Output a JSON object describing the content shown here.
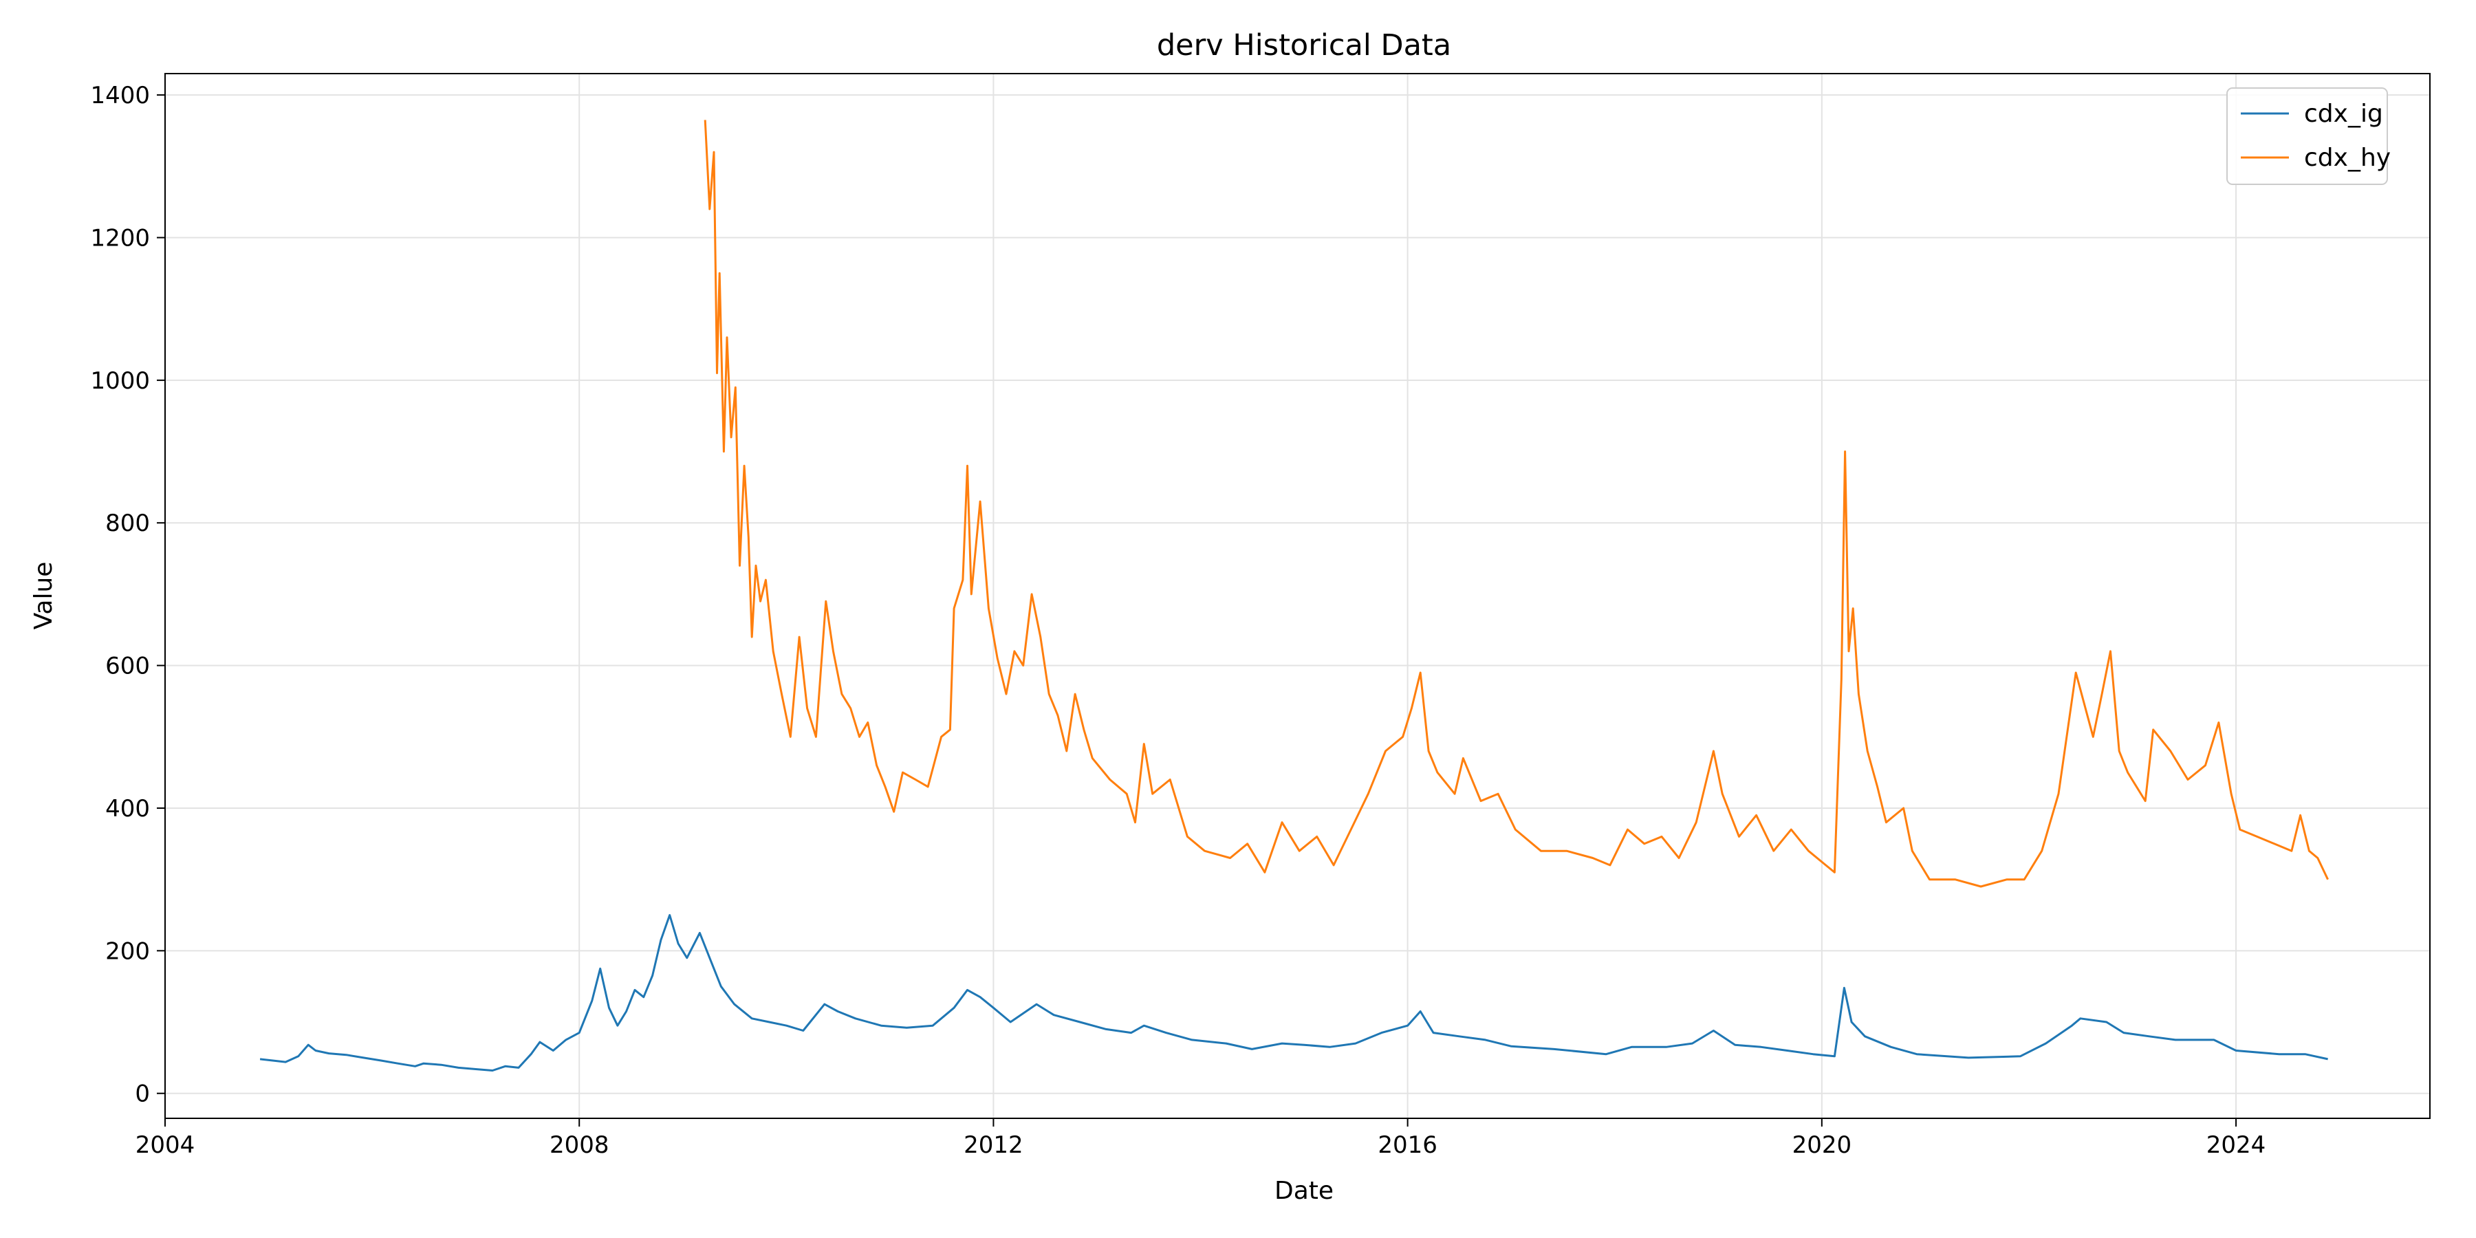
{
  "chart_data": {
    "type": "line",
    "title": "derv Historical Data",
    "xlabel": "Date",
    "ylabel": "Value",
    "xlim": [
      "2004-01-01",
      "2025-11-15"
    ],
    "ylim": [
      -35,
      1430
    ],
    "x_ticks": [
      "2004",
      "2008",
      "2012",
      "2016",
      "2020",
      "2024"
    ],
    "y_ticks": [
      0,
      200,
      400,
      600,
      800,
      1000,
      1200,
      1400
    ],
    "grid": true,
    "legend_position": "upper right",
    "series": [
      {
        "name": "cdx_ig",
        "color": "#1f77b4",
        "points": [
          [
            "2004-12-01",
            48
          ],
          [
            "2005-01-15",
            46
          ],
          [
            "2005-03-01",
            44
          ],
          [
            "2005-04-15",
            52
          ],
          [
            "2005-05-20",
            68
          ],
          [
            "2005-06-15",
            60
          ],
          [
            "2005-08-01",
            56
          ],
          [
            "2005-10-01",
            54
          ],
          [
            "2005-12-01",
            50
          ],
          [
            "2006-02-01",
            46
          ],
          [
            "2006-04-01",
            42
          ],
          [
            "2006-06-01",
            38
          ],
          [
            "2006-07-01",
            42
          ],
          [
            "2006-09-01",
            40
          ],
          [
            "2006-11-01",
            36
          ],
          [
            "2007-01-01",
            34
          ],
          [
            "2007-03-01",
            32
          ],
          [
            "2007-04-15",
            38
          ],
          [
            "2007-06-01",
            36
          ],
          [
            "2007-07-15",
            55
          ],
          [
            "2007-08-15",
            72
          ],
          [
            "2007-10-01",
            60
          ],
          [
            "2007-11-15",
            75
          ],
          [
            "2008-01-01",
            85
          ],
          [
            "2008-02-15",
            130
          ],
          [
            "2008-03-15",
            175
          ],
          [
            "2008-04-15",
            120
          ],
          [
            "2008-05-15",
            95
          ],
          [
            "2008-06-15",
            115
          ],
          [
            "2008-07-15",
            145
          ],
          [
            "2008-08-15",
            135
          ],
          [
            "2008-09-15",
            165
          ],
          [
            "2008-10-15",
            215
          ],
          [
            "2008-11-15",
            250
          ],
          [
            "2008-12-15",
            210
          ],
          [
            "2009-01-15",
            190
          ],
          [
            "2009-03-01",
            225
          ],
          [
            "2009-04-15",
            180
          ],
          [
            "2009-05-15",
            150
          ],
          [
            "2009-07-01",
            125
          ],
          [
            "2009-09-01",
            105
          ],
          [
            "2009-11-01",
            100
          ],
          [
            "2010-01-01",
            95
          ],
          [
            "2010-03-01",
            88
          ],
          [
            "2010-05-15",
            125
          ],
          [
            "2010-07-01",
            115
          ],
          [
            "2010-09-01",
            105
          ],
          [
            "2010-12-01",
            95
          ],
          [
            "2011-03-01",
            92
          ],
          [
            "2011-06-01",
            95
          ],
          [
            "2011-08-15",
            120
          ],
          [
            "2011-10-01",
            145
          ],
          [
            "2011-11-15",
            135
          ],
          [
            "2012-01-01",
            120
          ],
          [
            "2012-03-01",
            100
          ],
          [
            "2012-06-01",
            125
          ],
          [
            "2012-08-01",
            110
          ],
          [
            "2012-11-01",
            100
          ],
          [
            "2013-02-01",
            90
          ],
          [
            "2013-05-01",
            85
          ],
          [
            "2013-06-15",
            95
          ],
          [
            "2013-09-01",
            85
          ],
          [
            "2013-12-01",
            75
          ],
          [
            "2014-04-01",
            70
          ],
          [
            "2014-07-01",
            62
          ],
          [
            "2014-10-15",
            70
          ],
          [
            "2015-01-01",
            68
          ],
          [
            "2015-04-01",
            65
          ],
          [
            "2015-07-01",
            70
          ],
          [
            "2015-10-01",
            85
          ],
          [
            "2016-01-01",
            95
          ],
          [
            "2016-02-15",
            115
          ],
          [
            "2016-04-01",
            85
          ],
          [
            "2016-07-01",
            80
          ],
          [
            "2016-10-01",
            75
          ],
          [
            "2017-01-01",
            66
          ],
          [
            "2017-06-01",
            62
          ],
          [
            "2017-12-01",
            55
          ],
          [
            "2018-03-01",
            65
          ],
          [
            "2018-07-01",
            65
          ],
          [
            "2018-10-01",
            70
          ],
          [
            "2018-12-15",
            88
          ],
          [
            "2019-03-01",
            68
          ],
          [
            "2019-06-01",
            65
          ],
          [
            "2019-09-01",
            60
          ],
          [
            "2019-12-01",
            55
          ],
          [
            "2020-02-15",
            52
          ],
          [
            "2020-03-20",
            148
          ],
          [
            "2020-04-15",
            100
          ],
          [
            "2020-06-01",
            80
          ],
          [
            "2020-09-01",
            65
          ],
          [
            "2020-12-01",
            55
          ],
          [
            "2021-06-01",
            50
          ],
          [
            "2021-12-01",
            52
          ],
          [
            "2022-03-01",
            70
          ],
          [
            "2022-06-01",
            95
          ],
          [
            "2022-07-01",
            105
          ],
          [
            "2022-10-01",
            100
          ],
          [
            "2022-12-01",
            85
          ],
          [
            "2023-03-01",
            80
          ],
          [
            "2023-06-01",
            75
          ],
          [
            "2023-10-15",
            75
          ],
          [
            "2024-01-01",
            60
          ],
          [
            "2024-06-01",
            55
          ],
          [
            "2024-09-01",
            55
          ],
          [
            "2024-11-20",
            48
          ]
        ]
      },
      {
        "name": "cdx_hy",
        "color": "#ff7f0e",
        "points": [
          [
            "2009-03-20",
            1365
          ],
          [
            "2009-04-05",
            1240
          ],
          [
            "2009-04-20",
            1320
          ],
          [
            "2009-05-01",
            1010
          ],
          [
            "2009-05-10",
            1150
          ],
          [
            "2009-05-25",
            900
          ],
          [
            "2009-06-05",
            1060
          ],
          [
            "2009-06-20",
            920
          ],
          [
            "2009-07-05",
            990
          ],
          [
            "2009-07-20",
            740
          ],
          [
            "2009-08-05",
            880
          ],
          [
            "2009-08-20",
            780
          ],
          [
            "2009-09-01",
            640
          ],
          [
            "2009-09-15",
            740
          ],
          [
            "2009-10-01",
            690
          ],
          [
            "2009-10-20",
            720
          ],
          [
            "2009-11-15",
            620
          ],
          [
            "2009-12-15",
            560
          ],
          [
            "2010-01-15",
            500
          ],
          [
            "2010-02-15",
            640
          ],
          [
            "2010-03-15",
            540
          ],
          [
            "2010-04-15",
            500
          ],
          [
            "2010-05-20",
            690
          ],
          [
            "2010-06-15",
            620
          ],
          [
            "2010-07-15",
            560
          ],
          [
            "2010-08-15",
            540
          ],
          [
            "2010-09-15",
            500
          ],
          [
            "2010-10-15",
            520
          ],
          [
            "2010-11-15",
            460
          ],
          [
            "2010-12-15",
            430
          ],
          [
            "2011-01-15",
            395
          ],
          [
            "2011-02-15",
            450
          ],
          [
            "2011-04-01",
            440
          ],
          [
            "2011-05-15",
            430
          ],
          [
            "2011-07-01",
            500
          ],
          [
            "2011-08-01",
            510
          ],
          [
            "2011-08-15",
            680
          ],
          [
            "2011-09-15",
            720
          ],
          [
            "2011-10-01",
            880
          ],
          [
            "2011-10-15",
            700
          ],
          [
            "2011-11-15",
            830
          ],
          [
            "2011-12-15",
            680
          ],
          [
            "2012-01-15",
            610
          ],
          [
            "2012-02-15",
            560
          ],
          [
            "2012-03-15",
            620
          ],
          [
            "2012-04-15",
            600
          ],
          [
            "2012-05-15",
            700
          ],
          [
            "2012-06-15",
            640
          ],
          [
            "2012-07-15",
            560
          ],
          [
            "2012-08-15",
            530
          ],
          [
            "2012-09-15",
            480
          ],
          [
            "2012-10-15",
            560
          ],
          [
            "2012-11-15",
            510
          ],
          [
            "2012-12-15",
            470
          ],
          [
            "2013-02-15",
            440
          ],
          [
            "2013-04-15",
            420
          ],
          [
            "2013-05-15",
            380
          ],
          [
            "2013-06-15",
            490
          ],
          [
            "2013-07-15",
            420
          ],
          [
            "2013-09-15",
            440
          ],
          [
            "2013-11-15",
            360
          ],
          [
            "2014-01-15",
            340
          ],
          [
            "2014-04-15",
            330
          ],
          [
            "2014-06-15",
            350
          ],
          [
            "2014-08-15",
            310
          ],
          [
            "2014-10-15",
            380
          ],
          [
            "2014-12-15",
            340
          ],
          [
            "2015-02-15",
            360
          ],
          [
            "2015-04-15",
            320
          ],
          [
            "2015-06-15",
            370
          ],
          [
            "2015-08-15",
            420
          ],
          [
            "2015-10-15",
            480
          ],
          [
            "2015-12-15",
            500
          ],
          [
            "2016-01-15",
            540
          ],
          [
            "2016-02-15",
            590
          ],
          [
            "2016-03-15",
            480
          ],
          [
            "2016-04-15",
            450
          ],
          [
            "2016-06-15",
            420
          ],
          [
            "2016-07-15",
            470
          ],
          [
            "2016-09-15",
            410
          ],
          [
            "2016-11-15",
            420
          ],
          [
            "2017-01-15",
            370
          ],
          [
            "2017-04-15",
            340
          ],
          [
            "2017-07-15",
            340
          ],
          [
            "2017-10-15",
            330
          ],
          [
            "2017-12-15",
            320
          ],
          [
            "2018-02-15",
            370
          ],
          [
            "2018-04-15",
            350
          ],
          [
            "2018-06-15",
            360
          ],
          [
            "2018-08-15",
            330
          ],
          [
            "2018-10-15",
            380
          ],
          [
            "2018-12-15",
            480
          ],
          [
            "2019-01-15",
            420
          ],
          [
            "2019-03-15",
            360
          ],
          [
            "2019-05-15",
            390
          ],
          [
            "2019-07-15",
            340
          ],
          [
            "2019-09-15",
            370
          ],
          [
            "2019-11-15",
            340
          ],
          [
            "2020-01-15",
            320
          ],
          [
            "2020-02-15",
            310
          ],
          [
            "2020-03-10",
            580
          ],
          [
            "2020-03-23",
            900
          ],
          [
            "2020-04-05",
            620
          ],
          [
            "2020-04-20",
            680
          ],
          [
            "2020-05-10",
            560
          ],
          [
            "2020-06-10",
            480
          ],
          [
            "2020-07-15",
            430
          ],
          [
            "2020-08-15",
            380
          ],
          [
            "2020-10-15",
            400
          ],
          [
            "2020-11-15",
            340
          ],
          [
            "2021-01-15",
            300
          ],
          [
            "2021-04-15",
            300
          ],
          [
            "2021-07-15",
            290
          ],
          [
            "2021-10-15",
            300
          ],
          [
            "2021-12-15",
            300
          ],
          [
            "2022-02-15",
            340
          ],
          [
            "2022-04-15",
            420
          ],
          [
            "2022-06-15",
            590
          ],
          [
            "2022-08-15",
            500
          ],
          [
            "2022-09-15",
            560
          ],
          [
            "2022-10-15",
            620
          ],
          [
            "2022-11-15",
            480
          ],
          [
            "2022-12-15",
            450
          ],
          [
            "2023-02-15",
            410
          ],
          [
            "2023-03-15",
            510
          ],
          [
            "2023-05-15",
            480
          ],
          [
            "2023-07-15",
            440
          ],
          [
            "2023-09-15",
            460
          ],
          [
            "2023-11-01",
            520
          ],
          [
            "2023-12-15",
            420
          ],
          [
            "2024-01-15",
            370
          ],
          [
            "2024-03-15",
            360
          ],
          [
            "2024-05-15",
            350
          ],
          [
            "2024-07-15",
            340
          ],
          [
            "2024-08-15",
            390
          ],
          [
            "2024-09-15",
            340
          ],
          [
            "2024-10-15",
            330
          ],
          [
            "2024-11-20",
            300
          ]
        ]
      }
    ]
  }
}
